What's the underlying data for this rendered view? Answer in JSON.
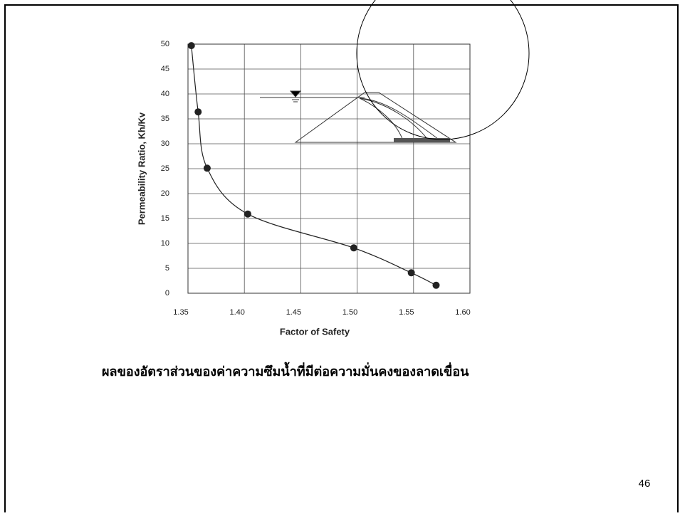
{
  "chart_data": {
    "type": "scatter",
    "xlabel": "Factor of Safety",
    "ylabel": "Permeability Ratio, Kh/Kv",
    "x": [
      1.353,
      1.359,
      1.367,
      1.403,
      1.497,
      1.548,
      1.57
    ],
    "series": [
      {
        "color": "#222222",
        "values": [
          49.7,
          36.4,
          25.1,
          15.9,
          9.1,
          4.1,
          1.6
        ]
      }
    ],
    "smooth_line": true,
    "xlim": [
      1.35,
      1.6
    ],
    "xticks": [
      1.35,
      {
        "value": 1.4,
        "label": "1.40"
      },
      1.45,
      {
        "value": 1.5,
        "label": "1.50"
      },
      1.55,
      {
        "value": 1.6,
        "label": "1.60"
      }
    ],
    "ylim": [
      0,
      50
    ],
    "yticks": [
      0,
      5,
      10,
      15,
      20,
      25,
      30,
      35,
      40,
      45,
      50
    ],
    "grid": true
  },
  "caption": "ผลของอัตราส่วนของค่าความซึมน้ำที่มีต่อความมั่นคงของลาดเขื่อน",
  "page_number": "46"
}
